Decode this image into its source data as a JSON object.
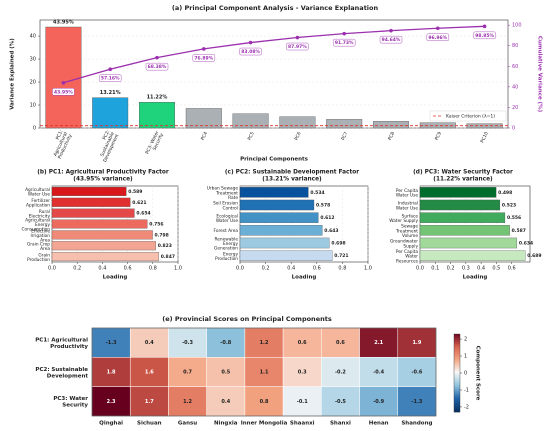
{
  "chart_data": [
    {
      "type": "bar",
      "title": "(a) Principal Component Analysis - Variance Explanation",
      "xlabel": "Principal Components",
      "ylabel": "Variance Explained (%)",
      "y2label": "Cumulative Variance (%)",
      "categories": [
        "PC1: Agricultural Productivity",
        "PC2: Sustainable Development",
        "PC3: Water Security",
        "PC4",
        "PC5",
        "PC6",
        "PC7",
        "PC8",
        "PC9",
        "PC10"
      ],
      "series": [
        {
          "values": [
            43.95,
            13.21,
            11.22,
            8.51,
            6.19,
            4.89,
            3.76,
            2.91,
            2.32,
            1.89
          ],
          "value_labels": [
            "43.95%",
            "13.21%",
            "11.22%",
            null,
            null,
            null,
            null,
            null,
            null,
            null
          ],
          "colors": [
            "#f4645a",
            "#1fa3dc",
            "#1ed37b",
            "#aab0b3",
            "#aab0b3",
            "#aab0b3",
            "#aab0b3",
            "#aab0b3",
            "#aab0b3",
            "#aab0b3"
          ]
        },
        {
          "axis": "y2",
          "color": "#9b2fae",
          "values": [
            43.95,
            57.16,
            68.38,
            76.89,
            83.08,
            87.97,
            91.73,
            94.64,
            96.96,
            98.85
          ],
          "value_labels": [
            "43.95%",
            "57.16%",
            "68.38%",
            "76.89%",
            "83.08%",
            "87.97%",
            "91.73%",
            "94.64%",
            "96.96%",
            "98.85%"
          ]
        }
      ],
      "ylim": [
        0,
        47
      ],
      "yticks": [
        0,
        10,
        20,
        30,
        40
      ],
      "y2lim": [
        0,
        105
      ],
      "y2ticks": [
        0,
        20,
        40,
        60,
        80,
        100
      ],
      "grid": true,
      "reference_line": {
        "value": 1,
        "label": "Kaiser Criterion (λ=1)",
        "color": "#e0302a"
      },
      "legend": "lower right"
    },
    {
      "type": "barh",
      "title": "(b) PC1: Agricultural Productivity Factor",
      "subtitle": "(43.95% variance)",
      "xlabel": "Loading",
      "categories": [
        "Agricultural Water Use",
        "Fertilizer Application",
        "Rural Electricity",
        "Agricultural Energy Consumption",
        "Effective Irrigation Area",
        "Grain Crop Area",
        "Grain Production"
      ],
      "values": [
        0.589,
        0.621,
        0.654,
        0.756,
        0.798,
        0.823,
        0.847
      ],
      "colors": [
        "#d7191c",
        "#e03030",
        "#e54848",
        "#ec6a5e",
        "#f08a78",
        "#f3a593",
        "#f6bfae"
      ],
      "xlim": [
        0,
        1.0
      ],
      "xticks": [
        {
          "value": 0,
          "label": "0.0"
        },
        0.2,
        0.4,
        0.6,
        0.8,
        {
          "value": 1,
          "label": "1.0"
        }
      ],
      "grid": true
    },
    {
      "type": "barh",
      "title": "(c) PC2: Sustainable Development Factor",
      "subtitle": "(13.21% variance)",
      "xlabel": "Loading",
      "categories": [
        "Urban Sewage Treatment Rate",
        "Soil Erosion Control",
        "Ecological Water Use",
        "Forest Area",
        "Renewable Energy Generation",
        "Energy Production"
      ],
      "values": [
        0.534,
        0.578,
        0.612,
        0.643,
        0.698,
        0.721
      ],
      "colors": [
        "#08519c",
        "#2171b5",
        "#4292c6",
        "#6baed6",
        "#9ecae1",
        "#c6dbef"
      ],
      "xlim": [
        0,
        1.0
      ],
      "xticks": [
        {
          "value": 0,
          "label": "0.0"
        },
        0.2,
        0.4,
        0.6,
        0.8,
        {
          "value": 1,
          "label": "1.0"
        }
      ],
      "grid": true
    },
    {
      "type": "barh",
      "title": "(d) PC3: Water Security Factor",
      "subtitle": "(11.22% variance)",
      "xlabel": "Loading",
      "categories": [
        "Per Capita Water Use",
        "Industrial Water Use",
        "Surface Water Supply",
        "Sewage Treatment Volume",
        "Groundwater Supply",
        "Per Capita Water Resources"
      ],
      "values": [
        0.498,
        0.523,
        0.556,
        0.587,
        0.634,
        0.689
      ],
      "colors": [
        "#006d2c",
        "#238b45",
        "#41ab5d",
        "#74c476",
        "#a1d99b",
        "#c7e9c0"
      ],
      "xlim": [
        0,
        0.72
      ],
      "xticks": [
        {
          "value": 0,
          "label": "0.0"
        },
        0.1,
        0.2,
        0.3,
        0.4,
        0.5,
        0.6
      ],
      "grid": true
    },
    {
      "type": "heatmap",
      "title": "(e) Provincial Scores on Principal Components",
      "colorbar_label": "Component Score",
      "rows": [
        "PC1: Agricultural Productivity",
        "PC2: Sustainable Development",
        "PC3: Water Security"
      ],
      "columns": [
        "Qinghai",
        "Sichuan",
        "Gansu",
        "Ningxia",
        "Inner Mongolia",
        "Shaanxi",
        "Shanxi",
        "Henan",
        "Shandong"
      ],
      "values": [
        [
          -1.3,
          0.4,
          -0.3,
          -0.8,
          1.2,
          0.6,
          0.6,
          2.1,
          1.9
        ],
        [
          1.8,
          1.6,
          0.7,
          0.5,
          1.1,
          0.3,
          -0.2,
          -0.4,
          -0.6
        ],
        [
          2.3,
          1.7,
          1.2,
          0.4,
          0.8,
          -0.1,
          -0.5,
          -0.9,
          -1.3
        ]
      ],
      "colormap": "RdBu_r",
      "zlim": [
        -2.3,
        2.3
      ],
      "zticks": [
        -2,
        -1,
        0,
        1,
        2
      ]
    }
  ]
}
